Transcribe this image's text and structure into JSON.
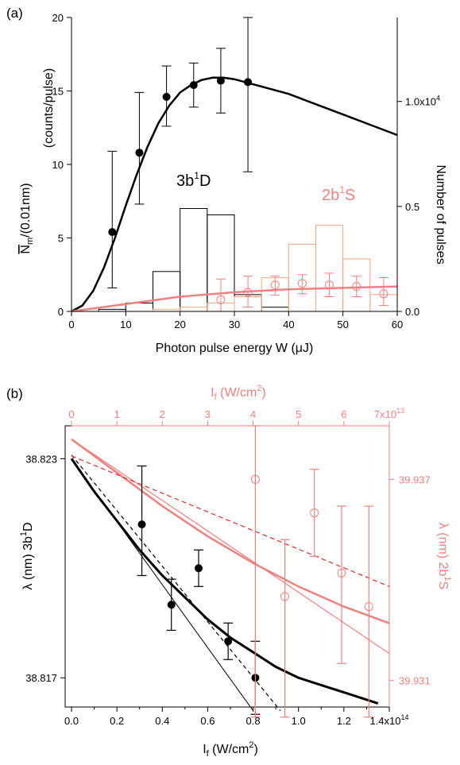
{
  "chart_data": [
    {
      "panel_label": "(a)",
      "type": "line",
      "xlabel": "Photon pulse energy W (μJ)",
      "ylabel_left": "/(0.01nm)",
      "ylabel_left_symbol": "N",
      "ylabel_left_subscript": "m",
      "ylabel_left_unit": "(counts/pulse)",
      "ylabel_right": "Number of pulses",
      "xlim": [
        0,
        60
      ],
      "ylim_left": [
        0,
        20
      ],
      "ylim_right": [
        0,
        1.4
      ],
      "xticks": [
        0,
        10,
        20,
        30,
        40,
        50,
        60
      ],
      "yticks_left": [
        0,
        5,
        10,
        15,
        20
      ],
      "yticks_right": [
        {
          "value": 0,
          "label": "0.0"
        },
        {
          "value": 0.5,
          "label": "0.5"
        },
        {
          "value": 1.0,
          "label": "1.0x10",
          "sup": "4"
        }
      ],
      "annotations": [
        {
          "text": "3b",
          "sup": "1",
          "tail": "D",
          "color": "#000000"
        },
        {
          "text": "2b",
          "sup": "1",
          "tail": "S",
          "color": "#f08080"
        }
      ],
      "series": [
        {
          "kind": "points",
          "color": "#000000",
          "x": [
            7.5,
            12.5,
            17.5,
            22.5,
            27.5,
            32.5
          ],
          "y": [
            5.4,
            10.8,
            14.6,
            15.4,
            15.7,
            15.6
          ],
          "err": [
            [
              1.6,
              10.9
            ],
            [
              7.3,
              14.9
            ],
            [
              12.6,
              16.7
            ],
            [
              13.9,
              16.9
            ],
            [
              13.5,
              17.9
            ],
            [
              9.5,
              20.0
            ]
          ]
        },
        {
          "kind": "curve",
          "color": "#000000",
          "x": [
            0,
            2,
            4,
            6,
            8,
            10,
            12,
            14,
            16,
            18,
            20,
            22,
            24,
            26,
            28,
            30,
            32,
            35,
            40,
            45,
            50,
            55,
            60
          ],
          "y": [
            0,
            0.4,
            1.4,
            3.0,
            5.0,
            7.2,
            9.3,
            11.2,
            12.8,
            14.0,
            14.9,
            15.4,
            15.75,
            15.9,
            15.9,
            15.8,
            15.6,
            15.3,
            14.8,
            14.1,
            13.4,
            12.7,
            12.0
          ]
        },
        {
          "kind": "histogram",
          "color": "#000000",
          "axis": "right",
          "x_edges": [
            5,
            10,
            15,
            20,
            25,
            30,
            35,
            40,
            45
          ],
          "counts": [
            0.01,
            0.04,
            0.19,
            0.49,
            0.46,
            0.08,
            0.02,
            0.0
          ]
        },
        {
          "kind": "histogram",
          "color": "#f4a582",
          "axis": "right",
          "x_edges": [
            15,
            20,
            25,
            30,
            35,
            40,
            45,
            50,
            55,
            60
          ],
          "counts": [
            0.01,
            0.02,
            0.04,
            0.07,
            0.16,
            0.32,
            0.41,
            0.25,
            0.08
          ]
        },
        {
          "kind": "points",
          "color": "#f08080",
          "marker": "open",
          "x": [
            27.5,
            32.5,
            37.5,
            42.5,
            47.5,
            52.5,
            57.5
          ],
          "y": [
            0.8,
            1.3,
            1.8,
            1.9,
            1.8,
            1.7,
            1.2
          ],
          "err": [
            [
              0.0,
              2.2
            ],
            [
              0.3,
              2.4
            ],
            [
              1.1,
              2.4
            ],
            [
              1.2,
              2.5
            ],
            [
              1.0,
              2.6
            ],
            [
              1.0,
              2.4
            ],
            [
              0.4,
              2.3
            ]
          ]
        },
        {
          "kind": "curve",
          "color": "#f08080",
          "x": [
            0,
            10,
            20,
            30,
            40,
            50,
            60
          ],
          "y": [
            0,
            0.5,
            1.0,
            1.3,
            1.5,
            1.6,
            1.7
          ]
        }
      ]
    },
    {
      "panel_label": "(b)",
      "type": "line",
      "xlabel": "I",
      "xlabel_sub": "f",
      "xlabel_unit": " (W/cm",
      "xlabel_unit_sup": "2",
      "xlim": [
        0,
        1.4
      ],
      "xticks": [
        {
          "value": 0,
          "label": "0.0"
        },
        {
          "value": 0.2,
          "label": "0.2"
        },
        {
          "value": 0.4,
          "label": "0.4"
        },
        {
          "value": 0.6,
          "label": "0.6"
        },
        {
          "value": 0.8,
          "label": "0.8"
        },
        {
          "value": 1.0,
          "label": "1.0"
        },
        {
          "value": 1.2,
          "label": "1.2"
        },
        {
          "value": 1.4,
          "label": "1.4x10",
          "sup": "14"
        }
      ],
      "top_xlabel": "I",
      "top_xlabel_sub": "f",
      "top_xlabel_unit": " (W/cm",
      "top_xlabel_unit_sup": "2",
      "top_xlim": [
        0,
        7
      ],
      "top_xticks": [
        {
          "value": 0,
          "label": "0"
        },
        {
          "value": 1,
          "label": "1"
        },
        {
          "value": 2,
          "label": "2"
        },
        {
          "value": 3,
          "label": "3"
        },
        {
          "value": 4,
          "label": "4"
        },
        {
          "value": 5,
          "label": "5"
        },
        {
          "value": 6,
          "label": "6"
        },
        {
          "value": 7,
          "label": "7x10",
          "sup": "13"
        }
      ],
      "ylabel_left": "λ (nm)  3b",
      "ylabel_left_sup": "1",
      "ylabel_left_tail": "D",
      "ylim_left": [
        38.8162,
        38.8239
      ],
      "yticks_left": [
        38.817,
        38.823
      ],
      "ylabel_right": "λ (nm)  2b",
      "ylabel_right_sup": "1",
      "ylabel_right_tail": "S",
      "ylim_right": [
        39.9302,
        39.9386
      ],
      "yticks_right": [
        39.931,
        39.937
      ],
      "series": [
        {
          "kind": "points",
          "color": "#000000",
          "axis": "left",
          "x": [
            0.31,
            0.44,
            0.56,
            0.69,
            0.81
          ],
          "y": [
            38.8212,
            38.819,
            38.82,
            38.818,
            38.817
          ],
          "err": [
            [
              38.8198,
              38.8228
            ],
            [
              38.8183,
              38.8197
            ],
            [
              38.8195,
              38.8205
            ],
            [
              38.8175,
              38.8185
            ],
            [
              38.816,
              38.818
            ]
          ]
        },
        {
          "kind": "curve",
          "color": "#000000",
          "width": 3,
          "axis": "left",
          "x": [
            0,
            0.1,
            0.2,
            0.3,
            0.4,
            0.5,
            0.6,
            0.7,
            0.8,
            0.9,
            1.0,
            1.1,
            1.2,
            1.3,
            1.35
          ],
          "y": [
            38.823,
            38.8221,
            38.8213,
            38.8205,
            38.8198,
            38.8192,
            38.8186,
            38.8181,
            38.8177,
            38.8173,
            38.817,
            38.8168,
            38.8166,
            38.8164,
            38.8163
          ]
        },
        {
          "kind": "curve",
          "color": "#000000",
          "width": 1,
          "axis": "left",
          "x": [
            0,
            0.8
          ],
          "y": [
            38.823,
            38.8161
          ]
        },
        {
          "kind": "curve",
          "color": "#000000",
          "width": 1.2,
          "dash": "5,4",
          "axis": "left",
          "x": [
            0,
            0.92
          ],
          "y": [
            38.8231,
            38.8161
          ]
        },
        {
          "kind": "points",
          "color": "#f08080",
          "marker": "open",
          "axis": "right",
          "x": [
            0.81,
            0.94,
            1.07,
            1.19,
            1.31
          ],
          "y": [
            39.937,
            39.9335,
            39.936,
            39.9342,
            39.9332
          ],
          "err": [
            [
              39.9299,
              39.9386
            ],
            [
              39.9299,
              39.9352
            ],
            [
              39.9347,
              39.9373
            ],
            [
              39.9315,
              39.9362
            ],
            [
              39.9299,
              39.9362
            ]
          ]
        },
        {
          "kind": "curve",
          "color": "#f08080",
          "width": 2.5,
          "axis": "right",
          "x": [
            0,
            0.2,
            0.4,
            0.6,
            0.8,
            1.0,
            1.2,
            1.4
          ],
          "y": [
            39.9382,
            39.9372,
            39.9362,
            39.9353,
            39.9345,
            39.9338,
            39.9332,
            39.9327
          ]
        },
        {
          "kind": "curve",
          "color": "#f08080",
          "width": 1.2,
          "axis": "right",
          "x": [
            0,
            1.4
          ],
          "y": [
            39.9382,
            39.9318
          ]
        },
        {
          "kind": "curve",
          "color": "#e03030",
          "width": 1.2,
          "dash": "6,4",
          "axis": "right",
          "x": [
            0,
            1.4
          ],
          "y": [
            39.9377,
            39.9338
          ]
        }
      ]
    }
  ]
}
